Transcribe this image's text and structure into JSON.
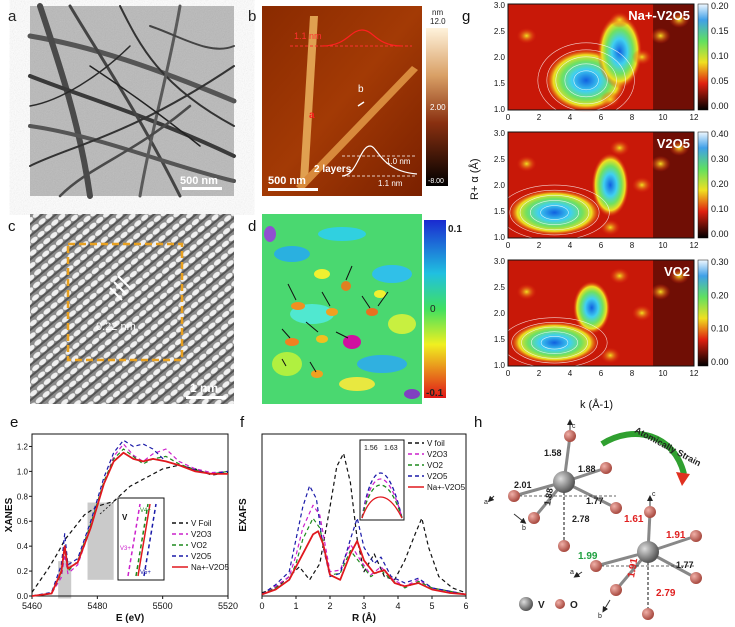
{
  "panel_labels": {
    "a": "a",
    "b": "b",
    "c": "c",
    "d": "d",
    "e": "e",
    "f": "f",
    "g": "g",
    "h": "h"
  },
  "panel_a": {
    "scalebar": "500 nm"
  },
  "panel_b": {
    "scalebar": "500 nm",
    "profile_top": "1.1 nm",
    "marker_a": "a",
    "marker_b": "b",
    "layers_label": "2 layers",
    "height_1": "1.0 nm",
    "height_2": "1.1 nm",
    "colorbar": {
      "unit": "nm",
      "top": "12.0",
      "mid": "2.00",
      "bottom": "-8.00"
    }
  },
  "panel_c": {
    "spacing": "0.22 nm",
    "scalebar": "1 nm"
  },
  "panel_d": {
    "colorbar": {
      "top": "0.1",
      "mid": "0",
      "bottom": "-0.1"
    }
  },
  "colors": {
    "vfoil": "#111111",
    "v2o3": "#cc22cc",
    "vo2": "#1e8a1e",
    "v2o5": "#1a1aa8",
    "na": "#e0181e"
  },
  "chart_data": [
    {
      "id": "e",
      "type": "line",
      "xlabel": "E (eV)",
      "ylabel": "XANES",
      "xlim": [
        5460,
        5520
      ],
      "ylim": [
        0,
        1.3
      ],
      "xticks": [
        5460,
        5480,
        5500,
        5520
      ],
      "yticks": [
        0.0,
        0.2,
        0.4,
        0.6,
        0.8,
        1.0,
        1.2
      ],
      "legend": [
        "V Foil",
        "V2O3",
        "VO2",
        "V2O5",
        "Na+-V2O5"
      ],
      "inset_labels": {
        "v": "V",
        "v4": "V4+",
        "v3": "V3+",
        "v5": "V5+"
      },
      "series": [
        {
          "name": "V Foil",
          "x": [
            5460,
            5465,
            5468,
            5470,
            5473,
            5476,
            5480,
            5485,
            5490,
            5495,
            5500,
            5505,
            5510,
            5515,
            5520
          ],
          "y": [
            0.03,
            0.22,
            0.35,
            0.45,
            0.55,
            0.65,
            0.72,
            0.76,
            0.88,
            0.95,
            1.02,
            1.05,
            1.02,
            0.97,
            0.99
          ]
        },
        {
          "name": "V2O3",
          "x": [
            5460,
            5466,
            5469,
            5470,
            5471,
            5474,
            5478,
            5482,
            5485,
            5488,
            5491,
            5494,
            5497,
            5501,
            5505,
            5510,
            5515,
            5520
          ],
          "y": [
            0.0,
            0.02,
            0.15,
            0.33,
            0.18,
            0.25,
            0.55,
            0.9,
            1.12,
            1.22,
            1.13,
            1.08,
            1.14,
            1.18,
            1.08,
            1.02,
            0.99,
            1.0
          ]
        },
        {
          "name": "VO2",
          "x": [
            5460,
            5466,
            5469,
            5470,
            5471,
            5474,
            5478,
            5482,
            5485,
            5488,
            5491,
            5494,
            5497,
            5501,
            5505,
            5510,
            5515,
            5520
          ],
          "y": [
            0.0,
            0.02,
            0.18,
            0.38,
            0.2,
            0.28,
            0.58,
            0.92,
            1.1,
            1.18,
            1.12,
            1.06,
            1.1,
            1.12,
            1.06,
            1.01,
            0.98,
            1.0
          ]
        },
        {
          "name": "V2O5",
          "x": [
            5460,
            5466,
            5469,
            5470,
            5471,
            5474,
            5478,
            5482,
            5485,
            5488,
            5491,
            5494,
            5497,
            5501,
            5505,
            5510,
            5515,
            5520
          ],
          "y": [
            0.0,
            0.03,
            0.25,
            0.5,
            0.25,
            0.3,
            0.6,
            0.95,
            1.15,
            1.25,
            1.2,
            1.22,
            1.18,
            1.08,
            1.05,
            1.01,
            0.98,
            1.0
          ]
        },
        {
          "name": "Na+-V2O5",
          "x": [
            5460,
            5466,
            5469,
            5470,
            5471,
            5474,
            5478,
            5482,
            5485,
            5488,
            5491,
            5494,
            5497,
            5501,
            5505,
            5510,
            5515,
            5520
          ],
          "y": [
            0.0,
            0.02,
            0.2,
            0.4,
            0.22,
            0.27,
            0.55,
            0.9,
            1.08,
            1.15,
            1.1,
            1.08,
            1.1,
            1.08,
            1.05,
            1.0,
            0.98,
            0.98
          ]
        }
      ]
    },
    {
      "id": "f",
      "type": "line",
      "xlabel": "R (Å)",
      "ylabel": "EXAFS",
      "xlim": [
        0,
        6
      ],
      "ylim": [
        0,
        10
      ],
      "xticks": [
        0,
        1,
        2,
        3,
        4,
        5,
        6
      ],
      "legend": [
        "V foil",
        "V2O3",
        "VO2",
        "V2O5",
        "Na+-V2O5"
      ],
      "inset_ticks": [
        "1.56",
        "1.63"
      ],
      "series": [
        {
          "name": "V foil",
          "x": [
            0,
            0.4,
            0.8,
            1.1,
            1.4,
            1.7,
            2.0,
            2.2,
            2.4,
            2.6,
            2.8,
            3.0,
            3.3,
            3.6,
            3.9,
            4.2,
            4.5,
            4.7,
            4.9,
            5.2,
            5.6,
            6.0
          ],
          "y": [
            0.2,
            0.5,
            1.2,
            1.8,
            1.0,
            2.0,
            5.5,
            8.0,
            8.8,
            7.0,
            3.5,
            1.5,
            2.6,
            1.2,
            1.0,
            2.2,
            3.8,
            4.8,
            3.0,
            1.2,
            0.5,
            0.2
          ]
        },
        {
          "name": "V2O3",
          "x": [
            0,
            0.4,
            0.8,
            1.0,
            1.2,
            1.5,
            1.7,
            2.0,
            2.3,
            2.6,
            2.9,
            3.2,
            3.5,
            3.8,
            4.2,
            4.6,
            5.0,
            5.5,
            6.0
          ],
          "y": [
            0.1,
            0.6,
            1.2,
            2.5,
            4.2,
            5.6,
            5.0,
            1.5,
            1.6,
            3.2,
            2.2,
            1.3,
            1.8,
            1.1,
            0.6,
            1.0,
            0.5,
            0.3,
            0.1
          ]
        },
        {
          "name": "VO2",
          "x": [
            0,
            0.4,
            0.8,
            1.0,
            1.2,
            1.5,
            1.7,
            2.0,
            2.3,
            2.6,
            2.9,
            3.2,
            3.5,
            3.8,
            4.2,
            4.6,
            5.0,
            5.5,
            6.0
          ],
          "y": [
            0.1,
            0.5,
            1.0,
            2.0,
            3.5,
            4.8,
            4.2,
            1.3,
            1.4,
            2.8,
            2.0,
            1.2,
            1.6,
            1.0,
            0.5,
            0.9,
            0.5,
            0.3,
            0.1
          ]
        },
        {
          "name": "V2O5",
          "x": [
            0,
            0.4,
            0.8,
            1.0,
            1.2,
            1.4,
            1.6,
            1.8,
            2.0,
            2.3,
            2.6,
            2.8,
            3.0,
            3.3,
            3.5,
            3.8,
            4.2,
            4.6,
            5.0,
            5.5,
            6.0
          ],
          "y": [
            0.1,
            0.7,
            1.5,
            3.5,
            5.5,
            6.8,
            6.0,
            3.0,
            1.2,
            1.4,
            3.5,
            4.8,
            3.0,
            2.0,
            2.4,
            1.2,
            0.8,
            1.1,
            0.5,
            0.3,
            0.1
          ]
        },
        {
          "name": "Na+-V2O5",
          "x": [
            0,
            0.4,
            0.8,
            1.0,
            1.3,
            1.5,
            1.65,
            1.8,
            2.0,
            2.3,
            2.6,
            2.8,
            3.0,
            3.3,
            3.6,
            3.9,
            4.2,
            4.6,
            5.0,
            5.5,
            6.0
          ],
          "y": [
            0.1,
            0.4,
            1.0,
            1.8,
            3.0,
            3.8,
            4.0,
            3.2,
            1.3,
            1.0,
            2.6,
            3.4,
            2.2,
            1.4,
            1.6,
            0.8,
            0.6,
            0.8,
            0.4,
            0.2,
            0.1
          ]
        }
      ]
    }
  ],
  "panel_g": {
    "plots": [
      {
        "label": "Na+-V2O5",
        "colorbar_ticks": [
          "0.20",
          "0.15",
          "0.10",
          "0.05",
          "0.00"
        ]
      },
      {
        "label": "V2O5",
        "colorbar_ticks": [
          "0.40",
          "0.30",
          "0.20",
          "0.10",
          "0.00"
        ]
      },
      {
        "label": "VO2",
        "colorbar_ticks": [
          "0.30",
          "0.20",
          "0.10",
          "0.00"
        ]
      }
    ],
    "xticks": [
      "0",
      "2",
      "4",
      "6",
      "8",
      "10",
      "12"
    ],
    "yticks": [
      "3.0",
      "2.5",
      "2.0",
      "1.5",
      "1.0"
    ],
    "xlabel": "k (Å-1)",
    "ylabel": "R+ α (Å)"
  },
  "panel_h": {
    "top_bonds": {
      "b1": "1.58",
      "b2": "2.01",
      "b3": "1.88",
      "b4": "1.88",
      "b5": "1.77",
      "b6": "2.78"
    },
    "bottom_bonds": {
      "b1": "1.61",
      "b2": "1.99",
      "b3": "1.91",
      "b4": "1.91",
      "b5": "1.77",
      "b6": "2.79"
    },
    "arrow_label": "Atomically Strain",
    "axis_a": "a",
    "axis_b": "b",
    "axis_c": "c",
    "legend_v": "V",
    "legend_o": "O"
  }
}
